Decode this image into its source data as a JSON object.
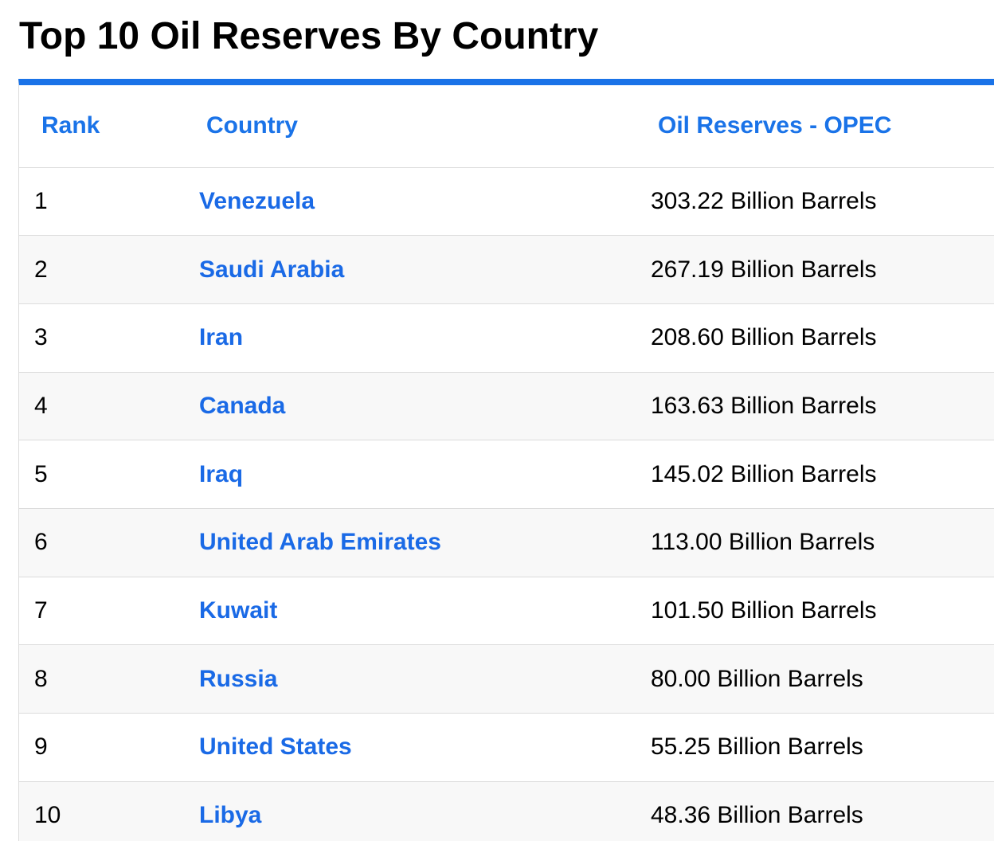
{
  "title": "Top 10 Oil Reserves By Country",
  "colors": {
    "accent": "#1a73e8",
    "link": "#1a6ae6",
    "row_alt": "#f8f8f8",
    "border": "#dcdcdc"
  },
  "table": {
    "headers": {
      "rank": "Rank",
      "country": "Country",
      "reserves": "Oil Reserves - OPEC"
    },
    "rows": [
      {
        "rank": "1",
        "country": "Venezuela",
        "reserves": "303.22 Billion Barrels"
      },
      {
        "rank": "2",
        "country": "Saudi Arabia",
        "reserves": "267.19 Billion Barrels"
      },
      {
        "rank": "3",
        "country": "Iran",
        "reserves": "208.60 Billion Barrels"
      },
      {
        "rank": "4",
        "country": "Canada",
        "reserves": "163.63 Billion Barrels"
      },
      {
        "rank": "5",
        "country": "Iraq",
        "reserves": "145.02 Billion Barrels"
      },
      {
        "rank": "6",
        "country": "United Arab Emirates",
        "reserves": "113.00 Billion Barrels"
      },
      {
        "rank": "7",
        "country": "Kuwait",
        "reserves": "101.50 Billion Barrels"
      },
      {
        "rank": "8",
        "country": "Russia",
        "reserves": "80.00 Billion Barrels"
      },
      {
        "rank": "9",
        "country": "United States",
        "reserves": "55.25 Billion Barrels"
      },
      {
        "rank": "10",
        "country": "Libya",
        "reserves": "48.36 Billion Barrels"
      }
    ]
  }
}
